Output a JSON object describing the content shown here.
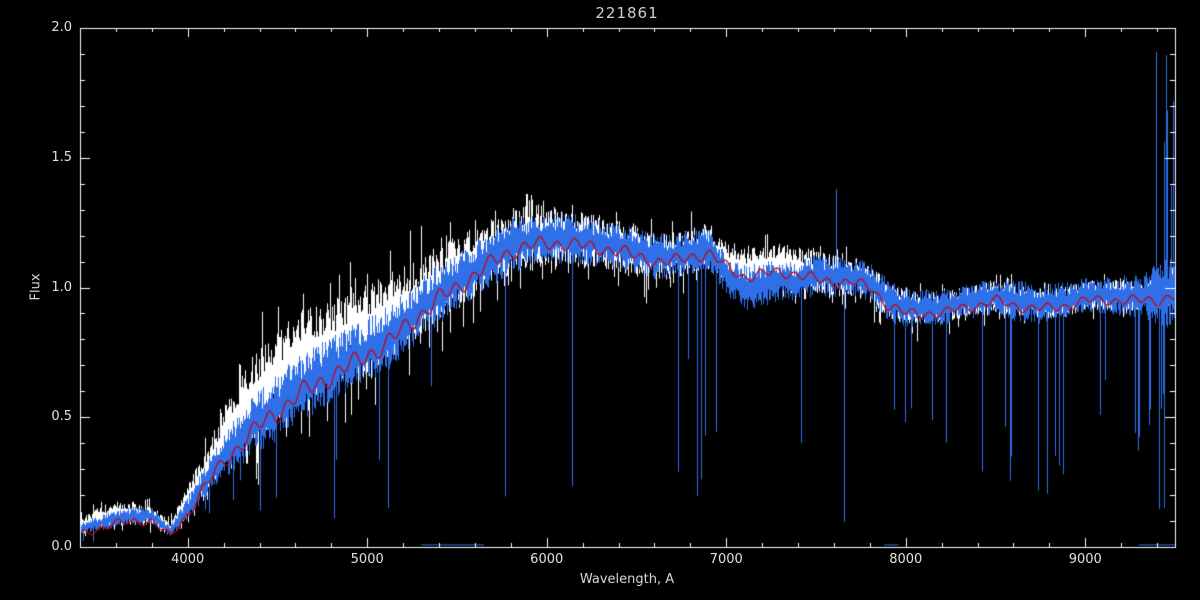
{
  "figure": {
    "background": "#000000",
    "axis_color": "#ffffff",
    "text_color": "#e0e0e0"
  },
  "chart_data": {
    "type": "line",
    "title": "221861",
    "xlabel": "Wavelength, A",
    "ylabel": "Flux",
    "xlim": [
      3400,
      9500
    ],
    "ylim": [
      0.0,
      2.0
    ],
    "grid": false,
    "legend": "none",
    "xticks": [
      {
        "value": 4000,
        "label": "4000"
      },
      {
        "value": 5000,
        "label": "5000"
      },
      {
        "value": 6000,
        "label": "6000"
      },
      {
        "value": 7000,
        "label": "7000"
      },
      {
        "value": 8000,
        "label": "8000"
      },
      {
        "value": 9000,
        "label": "9000"
      }
    ],
    "yticks": [
      {
        "value": 0.0,
        "label": "0.0"
      },
      {
        "value": 0.5,
        "label": "0.5"
      },
      {
        "value": 1.0,
        "label": "1.0"
      },
      {
        "value": 1.5,
        "label": "1.5"
      },
      {
        "value": 2.0,
        "label": "2.0"
      }
    ],
    "x_minor_tick_step": 200,
    "y_minor_tick_step": 0.1,
    "x_samples": [
      3400,
      3500,
      3600,
      3700,
      3800,
      3900,
      4000,
      4100,
      4200,
      4300,
      4400,
      4500,
      4600,
      4700,
      4800,
      4900,
      5000,
      5100,
      5200,
      5300,
      5400,
      5500,
      5600,
      5700,
      5800,
      5900,
      6000,
      6100,
      6200,
      6300,
      6400,
      6500,
      6600,
      6700,
      6800,
      6900,
      7000,
      7100,
      7200,
      7300,
      7400,
      7500,
      7600,
      7700,
      7800,
      7900,
      8000,
      8100,
      8200,
      8300,
      8400,
      8500,
      8600,
      8700,
      8800,
      8900,
      9000,
      9100,
      9200,
      9300,
      9400,
      9500
    ],
    "series": [
      {
        "name": "observed-spectrum-white",
        "color": "#ffffff",
        "style": "noisy-band",
        "continuum": [
          0.08,
          0.11,
          0.13,
          0.13,
          0.12,
          0.07,
          0.18,
          0.3,
          0.42,
          0.52,
          0.6,
          0.66,
          0.72,
          0.76,
          0.78,
          0.82,
          0.84,
          0.88,
          0.92,
          0.97,
          1.02,
          1.06,
          1.1,
          1.15,
          1.18,
          1.2,
          1.2,
          1.19,
          1.18,
          1.17,
          1.16,
          1.14,
          1.12,
          1.12,
          1.14,
          1.16,
          1.1,
          1.07,
          1.08,
          1.09,
          1.08,
          1.06,
          1.05,
          1.04,
          1.02,
          0.95,
          0.92,
          0.92,
          0.92,
          0.94,
          0.95,
          0.97,
          0.95,
          0.94,
          0.94,
          0.95,
          0.97,
          0.97,
          0.97,
          0.97,
          0.97,
          0.99
        ],
        "noise": [
          0.035,
          0.04,
          0.045,
          0.045,
          0.04,
          0.03,
          0.06,
          0.09,
          0.12,
          0.15,
          0.17,
          0.18,
          0.18,
          0.18,
          0.17,
          0.17,
          0.17,
          0.17,
          0.16,
          0.16,
          0.15,
          0.14,
          0.14,
          0.13,
          0.13,
          0.12,
          0.12,
          0.11,
          0.11,
          0.1,
          0.1,
          0.1,
          0.09,
          0.09,
          0.09,
          0.09,
          0.08,
          0.08,
          0.08,
          0.08,
          0.08,
          0.08,
          0.08,
          0.07,
          0.07,
          0.07,
          0.07,
          0.06,
          0.06,
          0.06,
          0.06,
          0.06,
          0.06,
          0.06,
          0.06,
          0.06,
          0.06,
          0.06,
          0.06,
          0.07,
          0.07,
          0.08
        ]
      },
      {
        "name": "observed-spectrum-blue",
        "color": "#2f6fe8",
        "style": "noisy-band-with-spikes",
        "continuum": [
          0.07,
          0.09,
          0.11,
          0.12,
          0.12,
          0.06,
          0.15,
          0.26,
          0.35,
          0.42,
          0.49,
          0.54,
          0.6,
          0.64,
          0.68,
          0.72,
          0.76,
          0.8,
          0.86,
          0.92,
          0.98,
          1.02,
          1.07,
          1.12,
          1.16,
          1.18,
          1.19,
          1.19,
          1.18,
          1.17,
          1.16,
          1.14,
          1.12,
          1.12,
          1.14,
          1.15,
          1.05,
          1.0,
          1.01,
          1.03,
          1.02,
          1.05,
          1.04,
          1.04,
          1.02,
          0.95,
          0.92,
          0.92,
          0.92,
          0.94,
          0.95,
          0.97,
          0.95,
          0.94,
          0.94,
          0.95,
          0.97,
          0.97,
          0.97,
          0.97,
          0.97,
          0.99
        ],
        "noise": [
          0.025,
          0.03,
          0.035,
          0.035,
          0.03,
          0.025,
          0.05,
          0.07,
          0.09,
          0.11,
          0.12,
          0.13,
          0.13,
          0.13,
          0.13,
          0.13,
          0.13,
          0.13,
          0.12,
          0.12,
          0.12,
          0.11,
          0.11,
          0.11,
          0.11,
          0.1,
          0.1,
          0.1,
          0.1,
          0.09,
          0.09,
          0.09,
          0.09,
          0.09,
          0.09,
          0.08,
          0.08,
          0.09,
          0.09,
          0.08,
          0.08,
          0.08,
          0.08,
          0.08,
          0.08,
          0.08,
          0.08,
          0.07,
          0.07,
          0.07,
          0.07,
          0.07,
          0.08,
          0.08,
          0.08,
          0.07,
          0.07,
          0.07,
          0.08,
          0.09,
          0.12,
          0.15
        ],
        "base_absorption_rate": 0.03,
        "absorption_regions": [
          {
            "range": [
              6820,
              6960
            ],
            "rate": 0.22
          },
          {
            "range": [
              7580,
              7700
            ],
            "rate": 0.16
          },
          {
            "range": [
              8520,
              8900
            ],
            "rate": 0.12
          },
          {
            "range": [
              9250,
              9500
            ],
            "rate": 0.18
          }
        ],
        "emission_region": {
          "range": [
            9360,
            9500
          ],
          "rate": 0.22
        },
        "emission_spike": {
          "wavelength": 7612,
          "flux": 1.38
        },
        "zero_segments": [
          [
            5300,
            5650
          ],
          [
            7880,
            7960
          ],
          [
            9300,
            9500
          ]
        ]
      },
      {
        "name": "template-fit-red",
        "color": "#cc0000",
        "style": "smooth-line",
        "continuum": [
          0.05,
          0.07,
          0.09,
          0.1,
          0.1,
          0.04,
          0.13,
          0.24,
          0.33,
          0.4,
          0.47,
          0.52,
          0.58,
          0.62,
          0.66,
          0.7,
          0.74,
          0.78,
          0.84,
          0.9,
          0.96,
          1.0,
          1.05,
          1.1,
          1.14,
          1.16,
          1.17,
          1.17,
          1.16,
          1.15,
          1.14,
          1.12,
          1.1,
          1.1,
          1.12,
          1.13,
          1.08,
          1.04,
          1.05,
          1.06,
          1.05,
          1.03,
          1.02,
          1.02,
          1.0,
          0.93,
          0.9,
          0.9,
          0.9,
          0.92,
          0.93,
          0.95,
          0.93,
          0.92,
          0.92,
          0.93,
          0.95,
          0.95,
          0.95,
          0.95,
          0.95,
          0.97
        ],
        "wiggle": 0.02
      }
    ]
  }
}
